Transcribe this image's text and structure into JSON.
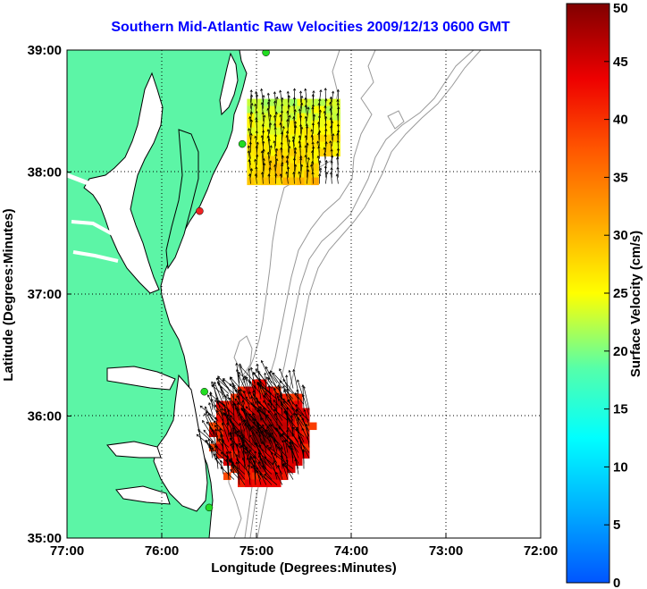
{
  "title": "Southern Mid-Atlantic Raw Velocities 2009/12/13 0600 GMT",
  "map": {
    "xlabel": "Longitude (Degrees:Minutes)",
    "ylabel": "Latitude (Degrees:Minutes)",
    "x_ticks": [
      "77:00",
      "76:00",
      "75:00",
      "74:00",
      "73:00",
      "72:00"
    ],
    "y_ticks": [
      "39:00",
      "38:00",
      "37:00",
      "36:00",
      "35:00"
    ],
    "lon_range": [
      -77,
      -72
    ],
    "lat_range": [
      35,
      39
    ],
    "land_color": "#5cf5a6",
    "water_color": "#ffffff",
    "stations": [
      {
        "lon": -74.9,
        "lat": 38.98,
        "color": "#22dd22"
      },
      {
        "lon": -75.15,
        "lat": 38.23,
        "color": "#22dd22"
      },
      {
        "lon": -75.6,
        "lat": 37.68,
        "color": "#ee2222"
      },
      {
        "lon": -75.55,
        "lat": 36.2,
        "color": "#22dd22"
      },
      {
        "lon": -75.5,
        "lat": 35.25,
        "color": "#22dd22"
      }
    ]
  },
  "colorbar": {
    "label": "Surface Velocity (cm/s)",
    "ticks": [
      "0",
      "5",
      "10",
      "15",
      "20",
      "25",
      "30",
      "35",
      "40",
      "45",
      "50"
    ],
    "min": 0,
    "max": 50,
    "colormap": "jet"
  },
  "fields": [
    {
      "name": "northern-field",
      "lon_range": [
        -75.1,
        -74.1
      ],
      "lat_range": [
        37.9,
        38.6
      ],
      "speed_range": [
        18,
        32
      ],
      "direction": "north"
    },
    {
      "name": "southern-field",
      "lon_range": [
        -75.5,
        -74.4
      ],
      "lat_range": [
        35.4,
        36.3
      ],
      "speed_range": [
        35,
        50
      ],
      "direction": "north-northwest"
    }
  ]
}
